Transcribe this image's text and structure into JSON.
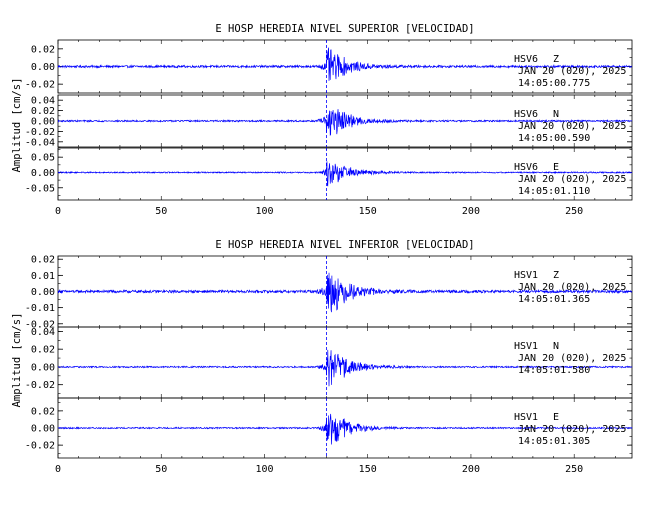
{
  "chart_data": [
    {
      "type": "line",
      "title": "E HOSP HEREDIA NIVEL SUPERIOR [VELOCIDAD]",
      "ylabel": "Amplitud [cm/s]",
      "xlabel": "",
      "xlim": [
        0,
        278
      ],
      "x_ticks": [
        "0",
        "50",
        "100",
        "150",
        "200",
        "250"
      ],
      "line_color": "#0000ff",
      "grid": false,
      "arrival_time_s": 130,
      "panels": [
        {
          "name": "HSV6 Z",
          "station": "HSV6",
          "component": "Z",
          "date": "JAN 20 (020), 2025",
          "time": "14:05:00.775",
          "ylim": [
            -0.03,
            0.03
          ],
          "y_ticks": [
            "0.02",
            "0.00",
            "-0.02"
          ],
          "peak_amplitude": 0.025,
          "noise_amplitude": 0.0012
        },
        {
          "name": "HSV6 N",
          "station": "HSV6",
          "component": "N",
          "date": "JAN 20 (020), 2025",
          "time": "14:05:00.590",
          "ylim": [
            -0.05,
            0.05
          ],
          "y_ticks": [
            "0.04",
            "0.02",
            "0.00",
            "-0.02",
            "-0.04"
          ],
          "peak_amplitude": 0.045,
          "noise_amplitude": 0.0015
        },
        {
          "name": "HSV6 E",
          "station": "HSV6",
          "component": "E",
          "date": "JAN 20 (020), 2025",
          "time": "14:05:01.110",
          "ylim": [
            -0.09,
            0.08
          ],
          "y_ticks": [
            "0.05",
            "0.00",
            "-0.05"
          ],
          "peak_amplitude": 0.06,
          "noise_amplitude": 0.002
        }
      ]
    },
    {
      "type": "line",
      "title": "E HOSP HEREDIA NIVEL INFERIOR [VELOCIDAD]",
      "ylabel": "Amplitud [cm/s]",
      "xlabel": "",
      "xlim": [
        0,
        278
      ],
      "x_ticks": [
        "0",
        "50",
        "100",
        "150",
        "200",
        "250"
      ],
      "line_color": "#0000ff",
      "grid": false,
      "arrival_time_s": 130,
      "panels": [
        {
          "name": "HSV1 Z",
          "station": "HSV1",
          "component": "Z",
          "date": "JAN 20 (020), 2025",
          "time": "14:05:01.365",
          "ylim": [
            -0.022,
            0.022
          ],
          "y_ticks": [
            "0.02",
            "0.01",
            "0.00",
            "-0.01",
            "-0.02"
          ],
          "peak_amplitude": 0.019,
          "noise_amplitude": 0.0008
        },
        {
          "name": "HSV1 N",
          "station": "HSV1",
          "component": "N",
          "date": "JAN 20 (020), 2025",
          "time": "14:05:01.580",
          "ylim": [
            -0.035,
            0.045
          ],
          "y_ticks": [
            "0.04",
            "0.02",
            "0.00",
            "-0.02"
          ],
          "peak_amplitude": 0.03,
          "noise_amplitude": 0.0008
        },
        {
          "name": "HSV1 E",
          "station": "HSV1",
          "component": "E",
          "date": "JAN 20 (020), 2025",
          "time": "14:05:01.305",
          "ylim": [
            -0.035,
            0.035
          ],
          "y_ticks": [
            "0.02",
            "0.00",
            "-0.02"
          ],
          "peak_amplitude": 0.028,
          "noise_amplitude": 0.0008
        }
      ]
    }
  ]
}
